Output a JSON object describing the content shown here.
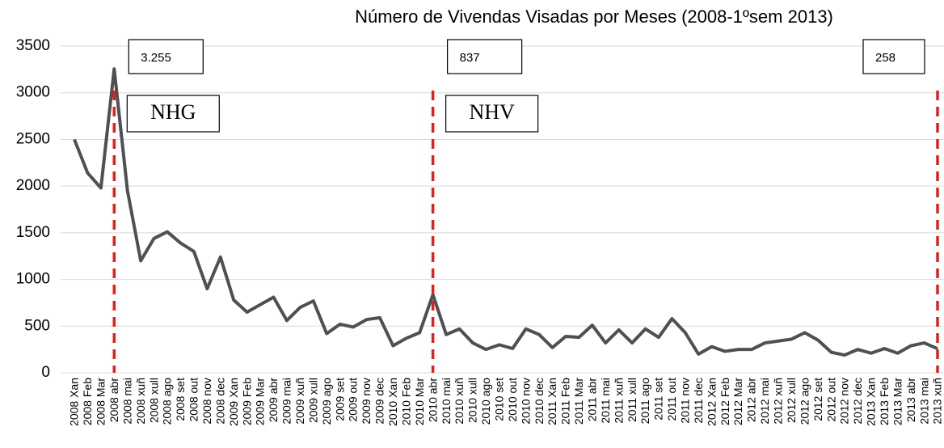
{
  "chart_data": {
    "type": "line",
    "title": "Número de Vivendas Visadas por Meses (2008-1ºsem 2013)",
    "categories": [
      "2008 Xan",
      "2008 Feb",
      "2008 Mar",
      "2008 abr",
      "2008 mai",
      "2008 xuñ",
      "2008 xull",
      "2008 ago",
      "2008 set",
      "2008 out",
      "2008 nov",
      "2008 dec",
      "2009 Xan",
      "2009 Feb",
      "2009 Mar",
      "2009 abr",
      "2009 mai",
      "2009 xuñ",
      "2009 xull",
      "2009 ago",
      "2009 set",
      "2009 out",
      "2009 nov",
      "2009 dec",
      "2010 Xan",
      "2010 Feb",
      "2010 Mar",
      "2010 abr",
      "2010 mai",
      "2010 xuñ",
      "2010 xull",
      "2010 ago",
      "2010 set",
      "2010 out",
      "2010 nov",
      "2010 dec",
      "2011 Xan",
      "2011 Feb",
      "2011 Mar",
      "2011 abr",
      "2011 mai",
      "2011 xuñ",
      "2011 xull",
      "2011 ago",
      "2011 set",
      "2011 out",
      "2011 nov",
      "2011 dec",
      "2012 Xan",
      "2012 Feb",
      "2012 Mar",
      "2012 abr",
      "2012 mai",
      "2012 xuñ",
      "2012 xull",
      "2012 ago",
      "2012 set",
      "2012 out",
      "2012 nov",
      "2012 dec",
      "2013 Xan",
      "2013 Feb",
      "2013 Mar",
      "2013 abr",
      "2013 mai",
      "2013 xuñ"
    ],
    "values": [
      2500,
      2140,
      1980,
      3255,
      1950,
      1200,
      1440,
      1510,
      1390,
      1300,
      900,
      1240,
      780,
      650,
      730,
      810,
      560,
      700,
      770,
      420,
      520,
      490,
      570,
      590,
      290,
      370,
      430,
      837,
      410,
      470,
      320,
      250,
      300,
      260,
      470,
      410,
      270,
      390,
      380,
      510,
      320,
      460,
      320,
      470,
      380,
      580,
      430,
      200,
      280,
      230,
      250,
      250,
      320,
      340,
      360,
      430,
      350,
      220,
      190,
      250,
      210,
      260,
      210,
      290,
      320,
      258
    ],
    "color": "#505050",
    "ylim": [
      0,
      3500
    ],
    "yticks": [
      0,
      500,
      1000,
      1500,
      2000,
      2500,
      3000,
      3500
    ],
    "grid": true,
    "marker_color": "#e02020",
    "annotations": [
      {
        "category": "2008 abr",
        "label": "3.255",
        "text": "NHG"
      },
      {
        "category": "2010 abr",
        "label": "837",
        "text": "NHV"
      },
      {
        "category": "2013 xuñ",
        "label": "258"
      }
    ]
  }
}
